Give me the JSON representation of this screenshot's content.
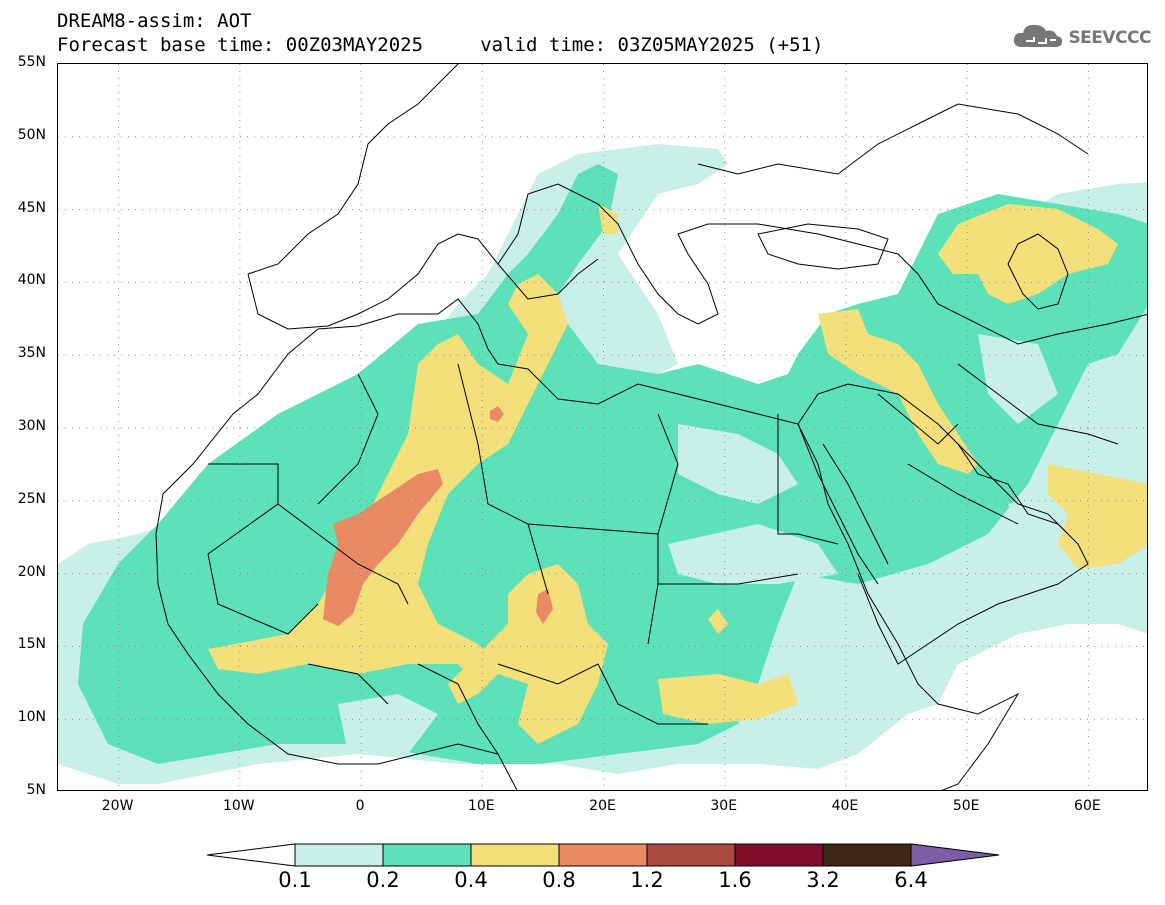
{
  "title": {
    "line1": "DREAM8-assim: AOT",
    "line2": "Forecast base time: 00Z03MAY2025     valid time: 03Z05MAY2025 (+51)"
  },
  "logo": {
    "text": "SEEVCCC",
    "icon": "cloud-icon"
  },
  "map": {
    "type": "aerosol-optical-thickness-map",
    "y_axis_labels": [
      "55N",
      "50N",
      "45N",
      "40N",
      "35N",
      "30N",
      "25N",
      "20N",
      "15N",
      "10N",
      "5N"
    ],
    "x_axis_labels": [
      "20W",
      "10W",
      "0",
      "10E",
      "20E",
      "30E",
      "40E",
      "50E",
      "60E"
    ],
    "lon_range": [
      -25,
      65
    ],
    "lat_range": [
      5,
      55
    ],
    "gridlines": true
  },
  "legend": {
    "labels": [
      "0.1",
      "0.2",
      "0.4",
      "0.8",
      "1.2",
      "1.6",
      "3.2",
      "6.4"
    ],
    "colors": [
      "#ffffff",
      "#c8f0e8",
      "#5ce1b9",
      "#f3e07a",
      "#ea8a64",
      "#a94b3f",
      "#800f2e",
      "#3d2614",
      "#7e5ca6"
    ]
  }
}
